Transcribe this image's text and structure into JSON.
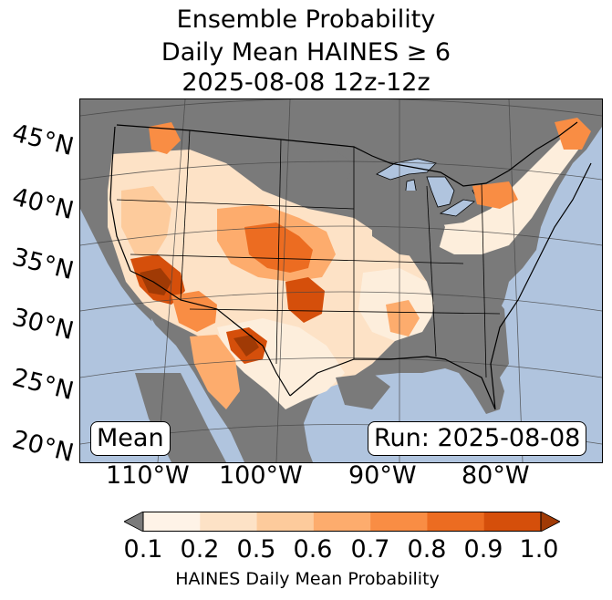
{
  "title": {
    "line1": "Ensemble Probability",
    "line2": "Daily Mean HAINES ≥ 6",
    "line3": "2025-08-08 12z-12z"
  },
  "map": {
    "lat_labels": [
      "45°N",
      "40°N",
      "35°N",
      "30°N",
      "25°N",
      "20°N"
    ],
    "lon_labels": [
      "110°W",
      "100°W",
      "90°W",
      "80°W"
    ],
    "mean_box": "Mean",
    "run_box": "Run: 2025-08-08",
    "colors": {
      "ocean": "#b0c4de",
      "no_data": "#7a7a7a",
      "low": "#fdeedc",
      "high": "#a03a05"
    }
  },
  "colorbar": {
    "ticks": [
      "0.1",
      "0.2",
      "0.5",
      "0.6",
      "0.7",
      "0.8",
      "0.9",
      "1.0"
    ],
    "label": "HAINES Daily Mean Probability",
    "colors": [
      "#fef3e7",
      "#fde2c6",
      "#fdcb9c",
      "#fdac6d",
      "#f98d44",
      "#ec6c21",
      "#d54f0b"
    ],
    "under_color": "#7a7a7a",
    "over_color": "#a03a05"
  }
}
